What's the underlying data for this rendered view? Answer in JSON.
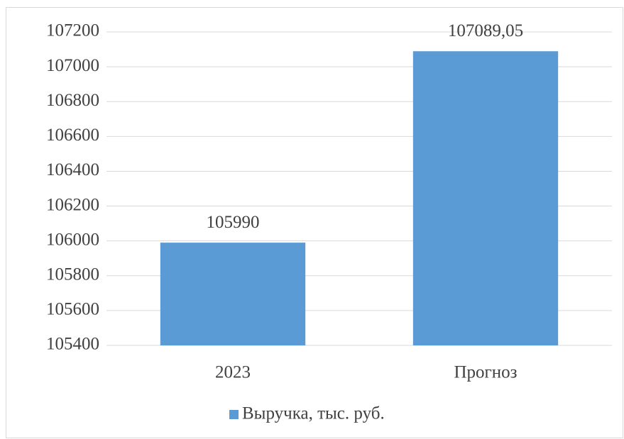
{
  "chart_data": {
    "type": "bar",
    "categories": [
      "2023",
      "Прогноз"
    ],
    "series": [
      {
        "name": "Выручка, тыс. руб.",
        "color": "#5b9bd5",
        "values": [
          105990,
          107089.05
        ],
        "value_labels": [
          "105990",
          "107089,05"
        ]
      }
    ],
    "ylim": [
      105400,
      107200
    ],
    "yticks": [
      105400,
      105600,
      105800,
      106000,
      106200,
      106400,
      106600,
      106800,
      107000,
      107200
    ],
    "grid": true,
    "legend": "bottom"
  }
}
